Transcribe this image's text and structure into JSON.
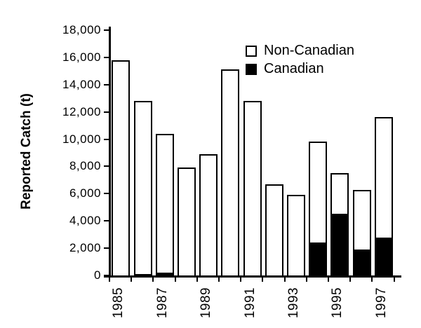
{
  "figure": {
    "ylabel": "Reported Catch (t)"
  },
  "legend": {
    "items": [
      {
        "label": "Non-Canadian",
        "swatch": "white"
      },
      {
        "label": "Canadian",
        "swatch": "black"
      }
    ]
  },
  "chart_data": {
    "type": "bar",
    "stacked": true,
    "title": "",
    "xlabel": "",
    "ylabel": "Reported Catch (t)",
    "ylim": [
      0,
      18000
    ],
    "ytick_step": 2000,
    "ytick_labels": [
      "0",
      "2,000",
      "4,000",
      "6,000",
      "8,000",
      "10,000",
      "12,000",
      "14,000",
      "16,000",
      "18,000"
    ],
    "categories": [
      1985,
      1986,
      1987,
      1988,
      1989,
      1990,
      1991,
      1992,
      1993,
      1994,
      1995,
      1996,
      1997
    ],
    "x_tick_labels": [
      "1985",
      "1987",
      "1989",
      "1991",
      "1993",
      "1995",
      "1997"
    ],
    "series": [
      {
        "name": "Canadian",
        "color": "#000000",
        "values": [
          0,
          100,
          200,
          0,
          0,
          0,
          0,
          0,
          0,
          2400,
          4500,
          1900,
          2800
        ]
      },
      {
        "name": "Non-Canadian",
        "color": "#ffffff",
        "values": [
          15800,
          12700,
          10200,
          7900,
          8900,
          15100,
          12800,
          6700,
          5900,
          7400,
          3000,
          4400,
          8800
        ]
      }
    ],
    "totals": [
      15800,
      12800,
      10400,
      7900,
      8900,
      15100,
      12800,
      6700,
      5900,
      9800,
      7500,
      6300,
      11600
    ],
    "legend_position": "upper-right",
    "grid": false
  }
}
